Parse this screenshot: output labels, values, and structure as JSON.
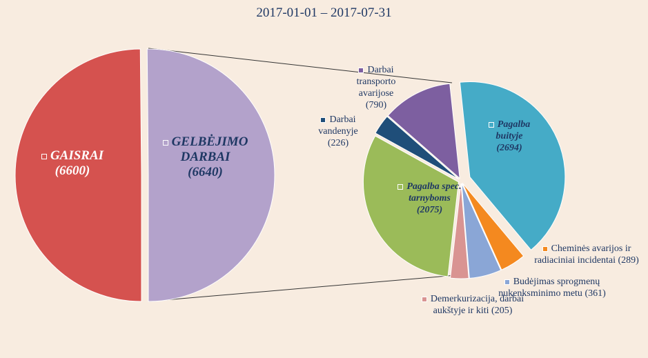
{
  "chart_data": [
    {
      "type": "pie",
      "title": "2017-01-01 – 2017-07-31",
      "categories": [
        "GAISRAI",
        "GELBĖJIMO DARBAI"
      ],
      "values": [
        6600,
        6640
      ],
      "value_labels": [
        "(6600)",
        "(6640)"
      ],
      "colors": [
        "#d5524f",
        "#b3a2cb"
      ]
    },
    {
      "type": "pie",
      "categories": [
        "Pagalba buityje",
        "Cheminės avarijos ir radiaciniai incidentai",
        "Budėjimas sprogmenų nukenksminimo metu",
        "Demerkurizacija, darbai aukštyje ir kiti",
        "Pagalba spec. tarnyboms",
        "Darbai vandenyje",
        "Darbai transporto avarijose"
      ],
      "values": [
        2694,
        289,
        361,
        205,
        2075,
        226,
        790
      ],
      "value_labels": [
        "(2694)",
        "(289)",
        "(361)",
        "(205)",
        "(2075)",
        "(226)",
        "(790)"
      ],
      "colors": [
        "#45abc7",
        "#f4891f",
        "#8aa6d6",
        "#d99492",
        "#9bbb59",
        "#1f4e79",
        "#7d5fa0"
      ]
    }
  ]
}
